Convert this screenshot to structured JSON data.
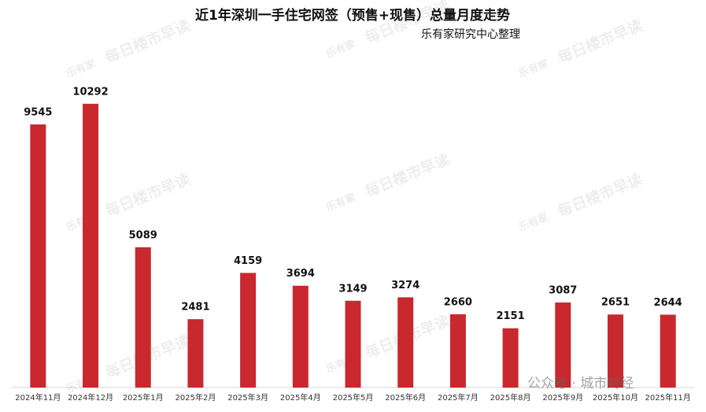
{
  "chart_data": {
    "type": "bar",
    "title": "近1年深圳一手住宅网签（预售+现售）总量月度走势",
    "subtitle": "乐有家研究中心整理",
    "categories": [
      "2024年11月",
      "2024年12月",
      "2025年1月",
      "2025年2月",
      "2025年3月",
      "2025年4月",
      "2025年5月",
      "2025年6月",
      "2025年7月",
      "2025年8月",
      "2025年9月",
      "2025年10月",
      "2025年11月"
    ],
    "values": [
      9545,
      10292,
      5089,
      2481,
      4159,
      3694,
      3149,
      3274,
      2660,
      2151,
      3087,
      2651,
      2644
    ],
    "color": "#c8282e",
    "ylim": [
      0,
      12000
    ],
    "watermark_logo": "乐有家",
    "watermark": "每日楼市早读",
    "footer_watermark": "公众号 · 城市财经"
  }
}
